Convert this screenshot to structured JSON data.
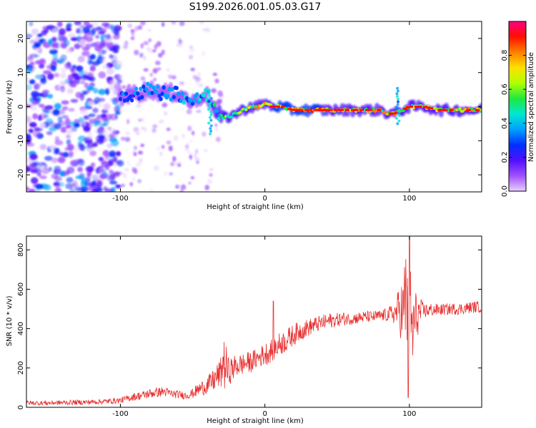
{
  "chart_data": [
    {
      "type": "heatmap",
      "title": "S199.2026.001.05.03.G17",
      "xlabel": "Height of straight line (km)",
      "ylabel": "Frequency (Hz)",
      "xlim": [
        -165,
        150
      ],
      "ylim": [
        -25,
        25
      ],
      "xticks": [
        -100,
        0,
        100
      ],
      "xtick_labels": [
        "-100",
        "0",
        "100"
      ],
      "yticks": [
        -20,
        -10,
        0,
        10,
        20
      ],
      "ytick_labels": [
        "-20",
        "-10",
        "0",
        "10",
        "20"
      ],
      "colorbar": {
        "label": "Normalized spectral amplitude",
        "range": [
          0,
          1
        ],
        "ticks": [
          0.0,
          0.2,
          0.4,
          0.6,
          0.8
        ],
        "tick_labels": [
          "0.0",
          "0.2",
          "0.4",
          "0.6",
          "0.8"
        ],
        "colors": [
          "#e8d0ff",
          "#a050ff",
          "#5010ff",
          "#0030ff",
          "#00a0ff",
          "#00e8d0",
          "#20e840",
          "#b0ff00",
          "#ffe000",
          "#ff8000",
          "#ff1000",
          "#ff0080"
        ]
      },
      "ridge": {
        "x": [
          -100,
          -90,
          -80,
          -70,
          -60,
          -50,
          -42,
          -38,
          -34,
          -30,
          -25,
          -20,
          -15,
          -10,
          -5,
          0,
          5,
          10,
          20,
          30,
          40,
          50,
          60,
          70,
          80,
          85,
          90,
          95,
          100,
          110,
          120,
          130,
          140,
          150
        ],
        "f": [
          3,
          4,
          5,
          4,
          4,
          1,
          4,
          2,
          -2,
          -3,
          -3,
          -2,
          -1,
          0,
          0,
          1,
          0,
          0,
          -1,
          -1,
          -1,
          -1,
          -1,
          -1,
          -1,
          -2,
          -2,
          -1,
          0,
          0,
          -1,
          -1,
          -1,
          -1
        ],
        "amplitude": [
          0.35,
          0.4,
          0.45,
          0.4,
          0.45,
          0.5,
          0.55,
          0.5,
          0.6,
          0.6,
          0.65,
          0.7,
          0.75,
          0.8,
          0.85,
          0.9,
          0.9,
          0.95,
          0.95,
          0.95,
          0.9,
          0.9,
          0.85,
          0.85,
          0.85,
          0.9,
          0.9,
          0.85,
          0.85,
          0.85,
          0.9,
          0.9,
          0.9,
          0.9
        ]
      },
      "noise_region": {
        "x": [
          -165,
          -100
        ],
        "f": [
          -25,
          25
        ],
        "amplitude": 0.25
      }
    },
    {
      "type": "line",
      "series_name": "SNR",
      "color": "#e83030",
      "xlabel": "Height of straight line (km)",
      "ylabel": "SNR (10 * v/v)",
      "xlim": [
        -165,
        150
      ],
      "ylim": [
        0,
        870
      ],
      "xticks": [
        -100,
        0,
        100
      ],
      "xtick_labels": [
        "-100",
        "0",
        "100"
      ],
      "yticks": [
        0,
        200,
        400,
        600,
        800
      ],
      "ytick_labels": [
        "0",
        "200",
        "400",
        "600",
        "800"
      ],
      "x": [
        -165,
        -150,
        -140,
        -130,
        -120,
        -110,
        -100,
        -95,
        -90,
        -85,
        -80,
        -75,
        -70,
        -65,
        -60,
        -55,
        -50,
        -45,
        -40,
        -35,
        -30,
        -28,
        -25,
        -20,
        -15,
        -10,
        -5,
        0,
        5,
        10,
        15,
        20,
        25,
        30,
        35,
        40,
        45,
        50,
        55,
        60,
        65,
        70,
        75,
        80,
        85,
        90,
        93,
        96,
        98,
        100,
        102,
        104,
        107,
        110,
        115,
        120,
        125,
        130,
        135,
        140,
        145,
        150
      ],
      "y": [
        22,
        22,
        24,
        25,
        27,
        30,
        35,
        45,
        55,
        60,
        70,
        75,
        80,
        70,
        65,
        60,
        70,
        95,
        110,
        140,
        180,
        220,
        180,
        210,
        220,
        230,
        250,
        270,
        290,
        320,
        340,
        370,
        390,
        405,
        420,
        430,
        440,
        445,
        450,
        450,
        455,
        460,
        460,
        465,
        470,
        480,
        500,
        480,
        600,
        500,
        380,
        450,
        480,
        490,
        495,
        495,
        498,
        500,
        500,
        505,
        510,
        510
      ],
      "noise": [
        12,
        12,
        12,
        13,
        13,
        14,
        15,
        18,
        20,
        22,
        25,
        25,
        25,
        22,
        20,
        20,
        25,
        35,
        45,
        60,
        80,
        140,
        70,
        60,
        55,
        55,
        50,
        60,
        60,
        60,
        60,
        55,
        50,
        45,
        40,
        40,
        40,
        35,
        35,
        30,
        30,
        30,
        30,
        30,
        35,
        60,
        120,
        200,
        350,
        300,
        250,
        150,
        80,
        40,
        35,
        30,
        30,
        30,
        30,
        30,
        30,
        30
      ],
      "spikes": [
        {
          "x": -29,
          "y": 255
        },
        {
          "x": 6,
          "y": 540
        },
        {
          "x": 100,
          "y": 870
        },
        {
          "x": 99,
          "y": 50
        }
      ]
    }
  ]
}
